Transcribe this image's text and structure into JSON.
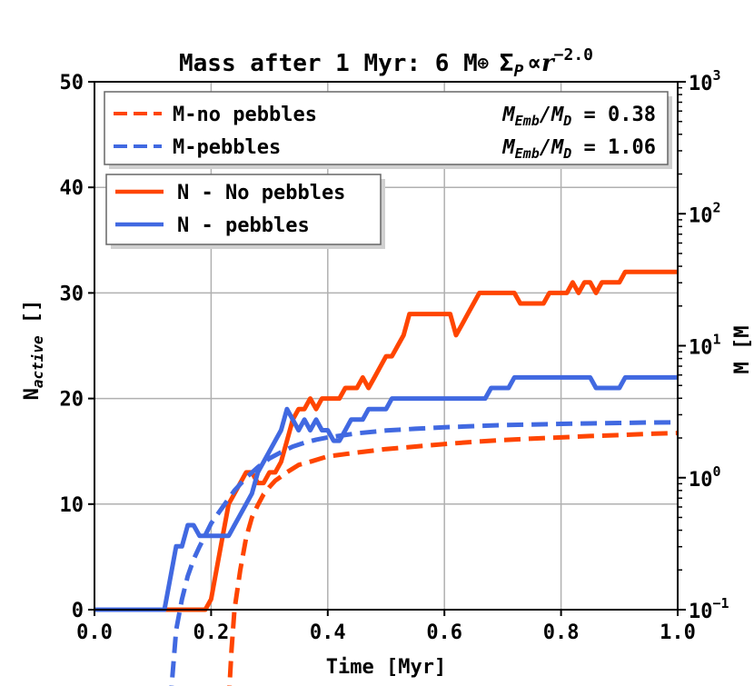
{
  "chart_data": {
    "type": "line",
    "title_parts": {
      "prefix": "Mass after 1 Myr: 6 M",
      "earth": "⊕",
      "sigma": "Σ",
      "sigma_sub": "P",
      "prop": "∝",
      "r": "r",
      "exp": "−2.0"
    },
    "xlabel": "Time [Myr]",
    "ylabel_main": "N",
    "ylabel_sub": "active",
    "ylabel_unit": " []",
    "y2label_visible": "M [M",
    "xlim": [
      0.0,
      1.0
    ],
    "ylim": [
      0,
      50
    ],
    "y2lim_log10": [
      -1,
      3
    ],
    "x_ticks": [
      "0.0",
      "0.2",
      "0.4",
      "0.6",
      "0.8",
      "1.0"
    ],
    "x_tick_values": [
      0.0,
      0.2,
      0.4,
      0.6,
      0.8,
      1.0
    ],
    "y_ticks": [
      "0",
      "10",
      "20",
      "30",
      "40",
      "50"
    ],
    "y_tick_values": [
      0,
      10,
      20,
      30,
      40,
      50
    ],
    "y2_ticks": [
      {
        "base": "10",
        "exp": "−1",
        "log": -1
      },
      {
        "base": "10",
        "exp": "0",
        "log": 0
      },
      {
        "base": "10",
        "exp": "1",
        "log": 1
      },
      {
        "base": "10",
        "exp": "2",
        "log": 2
      },
      {
        "base": "10",
        "exp": "3",
        "log": 3
      }
    ],
    "grid": true,
    "colors": {
      "no_pebbles": "#ff4500",
      "pebbles": "#4169e1"
    },
    "legend_mass": {
      "placement": "top",
      "entries": [
        {
          "label": "M-no pebbles",
          "ratio_label": "M",
          "ratio_sub1": "Emb",
          "ratio_mid": "/M",
          "ratio_sub2": "D",
          "ratio_value": " = 0.38"
        },
        {
          "label": "M-pebbles",
          "ratio_label": "M",
          "ratio_sub1": "Emb",
          "ratio_mid": "/M",
          "ratio_sub2": "D",
          "ratio_value": " = 1.06"
        }
      ]
    },
    "legend_number": {
      "placement": "upper-left",
      "entries": [
        {
          "label": "N - No pebbles"
        },
        {
          "label": "N - pebbles"
        }
      ]
    },
    "series": [
      {
        "name": "N - No pebbles",
        "axis": "left",
        "style": "solid",
        "color_key": "no_pebbles",
        "points": [
          [
            0.0,
            0
          ],
          [
            0.19,
            0
          ],
          [
            0.2,
            1
          ],
          [
            0.21,
            4
          ],
          [
            0.22,
            7
          ],
          [
            0.23,
            10
          ],
          [
            0.24,
            11
          ],
          [
            0.25,
            12
          ],
          [
            0.26,
            13
          ],
          [
            0.27,
            13
          ],
          [
            0.28,
            12
          ],
          [
            0.29,
            12
          ],
          [
            0.3,
            13
          ],
          [
            0.31,
            13
          ],
          [
            0.32,
            14
          ],
          [
            0.33,
            16
          ],
          [
            0.34,
            18
          ],
          [
            0.35,
            19
          ],
          [
            0.36,
            19
          ],
          [
            0.37,
            20
          ],
          [
            0.38,
            19
          ],
          [
            0.39,
            20
          ],
          [
            0.4,
            20
          ],
          [
            0.41,
            20
          ],
          [
            0.42,
            20
          ],
          [
            0.43,
            21
          ],
          [
            0.44,
            21
          ],
          [
            0.45,
            21
          ],
          [
            0.46,
            22
          ],
          [
            0.47,
            21
          ],
          [
            0.48,
            22
          ],
          [
            0.49,
            23
          ],
          [
            0.5,
            24
          ],
          [
            0.51,
            24
          ],
          [
            0.52,
            25
          ],
          [
            0.53,
            26
          ],
          [
            0.54,
            28
          ],
          [
            0.6,
            28
          ],
          [
            0.61,
            28
          ],
          [
            0.62,
            26
          ],
          [
            0.63,
            27
          ],
          [
            0.64,
            28
          ],
          [
            0.65,
            29
          ],
          [
            0.66,
            30
          ],
          [
            0.72,
            30
          ],
          [
            0.73,
            29
          ],
          [
            0.77,
            29
          ],
          [
            0.78,
            30
          ],
          [
            0.79,
            30
          ],
          [
            0.8,
            30
          ],
          [
            0.81,
            30
          ],
          [
            0.82,
            31
          ],
          [
            0.83,
            30
          ],
          [
            0.84,
            31
          ],
          [
            0.85,
            31
          ],
          [
            0.86,
            30
          ],
          [
            0.87,
            31
          ],
          [
            0.9,
            31
          ],
          [
            0.91,
            32
          ],
          [
            0.93,
            32
          ],
          [
            1.0,
            32
          ]
        ]
      },
      {
        "name": "N - pebbles",
        "axis": "left",
        "style": "solid",
        "color_key": "pebbles",
        "points": [
          [
            0.0,
            0
          ],
          [
            0.12,
            0
          ],
          [
            0.13,
            3
          ],
          [
            0.14,
            6
          ],
          [
            0.15,
            6
          ],
          [
            0.16,
            8
          ],
          [
            0.17,
            8
          ],
          [
            0.18,
            7
          ],
          [
            0.23,
            7
          ],
          [
            0.24,
            8
          ],
          [
            0.25,
            9
          ],
          [
            0.26,
            10
          ],
          [
            0.27,
            11
          ],
          [
            0.28,
            13
          ],
          [
            0.29,
            14
          ],
          [
            0.3,
            15
          ],
          [
            0.31,
            16
          ],
          [
            0.32,
            17
          ],
          [
            0.33,
            19
          ],
          [
            0.34,
            18
          ],
          [
            0.35,
            17
          ],
          [
            0.36,
            18
          ],
          [
            0.37,
            17
          ],
          [
            0.38,
            18
          ],
          [
            0.39,
            17
          ],
          [
            0.4,
            17
          ],
          [
            0.41,
            16
          ],
          [
            0.42,
            16
          ],
          [
            0.43,
            17
          ],
          [
            0.44,
            18
          ],
          [
            0.45,
            18
          ],
          [
            0.46,
            18
          ],
          [
            0.47,
            19
          ],
          [
            0.48,
            19
          ],
          [
            0.5,
            19
          ],
          [
            0.51,
            20
          ],
          [
            0.6,
            20
          ],
          [
            0.67,
            20
          ],
          [
            0.68,
            21
          ],
          [
            0.71,
            21
          ],
          [
            0.72,
            22
          ],
          [
            0.85,
            22
          ],
          [
            0.86,
            21
          ],
          [
            0.9,
            21
          ],
          [
            0.91,
            22
          ],
          [
            1.0,
            22
          ]
        ]
      },
      {
        "name": "M-no pebbles",
        "axis": "right",
        "style": "dashed",
        "color_key": "no_pebbles",
        "points": [
          [
            0.23,
            0.02
          ],
          [
            0.235,
            0.05
          ],
          [
            0.24,
            0.1
          ],
          [
            0.25,
            0.2
          ],
          [
            0.26,
            0.35
          ],
          [
            0.27,
            0.5
          ],
          [
            0.28,
            0.62
          ],
          [
            0.29,
            0.75
          ],
          [
            0.3,
            0.85
          ],
          [
            0.31,
            0.95
          ],
          [
            0.32,
            1.02
          ],
          [
            0.33,
            1.1
          ],
          [
            0.35,
            1.25
          ],
          [
            0.37,
            1.32
          ],
          [
            0.4,
            1.45
          ],
          [
            0.45,
            1.55
          ],
          [
            0.5,
            1.65
          ],
          [
            0.55,
            1.72
          ],
          [
            0.6,
            1.8
          ],
          [
            0.65,
            1.87
          ],
          [
            0.7,
            1.93
          ],
          [
            0.75,
            1.98
          ],
          [
            0.8,
            2.02
          ],
          [
            0.85,
            2.07
          ],
          [
            0.9,
            2.1
          ],
          [
            0.95,
            2.15
          ],
          [
            1.0,
            2.18
          ]
        ]
      },
      {
        "name": "M-pebbles",
        "axis": "right",
        "style": "dashed",
        "color_key": "pebbles",
        "points": [
          [
            0.13,
            0.02
          ],
          [
            0.14,
            0.07
          ],
          [
            0.15,
            0.12
          ],
          [
            0.16,
            0.18
          ],
          [
            0.17,
            0.24
          ],
          [
            0.18,
            0.3
          ],
          [
            0.2,
            0.45
          ],
          [
            0.22,
            0.6
          ],
          [
            0.24,
            0.8
          ],
          [
            0.26,
            1.0
          ],
          [
            0.28,
            1.2
          ],
          [
            0.3,
            1.4
          ],
          [
            0.32,
            1.56
          ],
          [
            0.34,
            1.72
          ],
          [
            0.36,
            1.84
          ],
          [
            0.38,
            1.94
          ],
          [
            0.4,
            2.02
          ],
          [
            0.45,
            2.17
          ],
          [
            0.5,
            2.28
          ],
          [
            0.55,
            2.35
          ],
          [
            0.6,
            2.41
          ],
          [
            0.65,
            2.46
          ],
          [
            0.7,
            2.5
          ],
          [
            0.75,
            2.53
          ],
          [
            0.8,
            2.56
          ],
          [
            0.85,
            2.58
          ],
          [
            0.9,
            2.6
          ],
          [
            0.95,
            2.62
          ],
          [
            1.0,
            2.63
          ]
        ]
      }
    ]
  }
}
